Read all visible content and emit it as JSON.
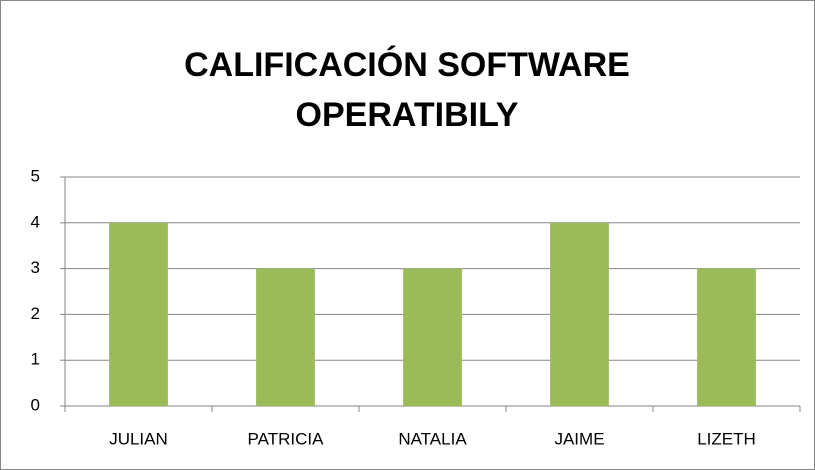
{
  "chart_data": {
    "type": "bar",
    "title": "CALIFICACIÓN SOFTWARE OPERATIBILY",
    "categories": [
      "JULIAN",
      "PATRICIA",
      "NATALIA",
      "JAIME",
      "LIZETH"
    ],
    "values": [
      4,
      3,
      3,
      4,
      3
    ],
    "color": "#9bbb59",
    "ylim": [
      0,
      5
    ],
    "yticks": [
      0,
      1,
      2,
      3,
      4,
      5
    ],
    "grid": true
  }
}
